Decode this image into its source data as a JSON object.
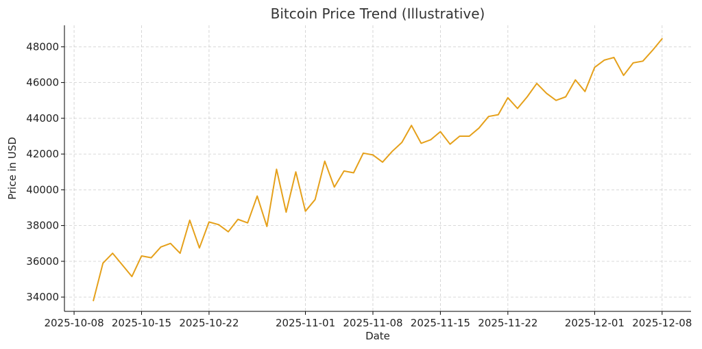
{
  "chart_data": {
    "type": "line",
    "title": "Bitcoin Price Trend (Illustrative)",
    "xlabel": "Date",
    "ylabel": "Price in USD",
    "grid": true,
    "legend": "none",
    "xlim": [
      "2025-10-07",
      "2025-12-11"
    ],
    "ylim": [
      33200,
      49200
    ],
    "x_ticks": [
      "2025-10-08",
      "2025-10-15",
      "2025-10-22",
      "2025-11-01",
      "2025-11-08",
      "2025-11-15",
      "2025-11-22",
      "2025-12-01",
      "2025-12-08"
    ],
    "y_ticks": [
      34000,
      36000,
      38000,
      40000,
      42000,
      44000,
      46000,
      48000
    ],
    "series": [
      {
        "color": "#e5a01a",
        "x": [
          "2025-10-10",
          "2025-10-11",
          "2025-10-12",
          "2025-10-13",
          "2025-10-14",
          "2025-10-15",
          "2025-10-16",
          "2025-10-17",
          "2025-10-18",
          "2025-10-19",
          "2025-10-20",
          "2025-10-21",
          "2025-10-22",
          "2025-10-23",
          "2025-10-24",
          "2025-10-25",
          "2025-10-26",
          "2025-10-27",
          "2025-10-28",
          "2025-10-29",
          "2025-10-30",
          "2025-10-31",
          "2025-11-01",
          "2025-11-02",
          "2025-11-03",
          "2025-11-04",
          "2025-11-05",
          "2025-11-06",
          "2025-11-07",
          "2025-11-08",
          "2025-11-09",
          "2025-11-10",
          "2025-11-11",
          "2025-11-12",
          "2025-11-13",
          "2025-11-14",
          "2025-11-15",
          "2025-11-16",
          "2025-11-17",
          "2025-11-18",
          "2025-11-19",
          "2025-11-20",
          "2025-11-21",
          "2025-11-22",
          "2025-11-23",
          "2025-11-24",
          "2025-11-25",
          "2025-11-26",
          "2025-11-27",
          "2025-11-28",
          "2025-11-29",
          "2025-11-30",
          "2025-12-01",
          "2025-12-02",
          "2025-12-03",
          "2025-12-04",
          "2025-12-05",
          "2025-12-06",
          "2025-12-07",
          "2025-12-08"
        ],
        "values": [
          33800,
          35900,
          36450,
          35800,
          35150,
          36300,
          36200,
          36800,
          37000,
          36450,
          38300,
          36750,
          38200,
          38050,
          37650,
          38350,
          38150,
          39650,
          37950,
          41150,
          38750,
          41000,
          38800,
          39450,
          41600,
          40150,
          41050,
          40950,
          42050,
          41950,
          41550,
          42150,
          42650,
          43600,
          42600,
          42800,
          43250,
          42550,
          43000,
          43000,
          43450,
          44100,
          44200,
          45150,
          44550,
          45200,
          45950,
          45400,
          45000,
          45200,
          46150,
          45500,
          46850,
          47250,
          47400,
          46400,
          47100,
          47200,
          47800,
          48450
        ]
      }
    ]
  }
}
